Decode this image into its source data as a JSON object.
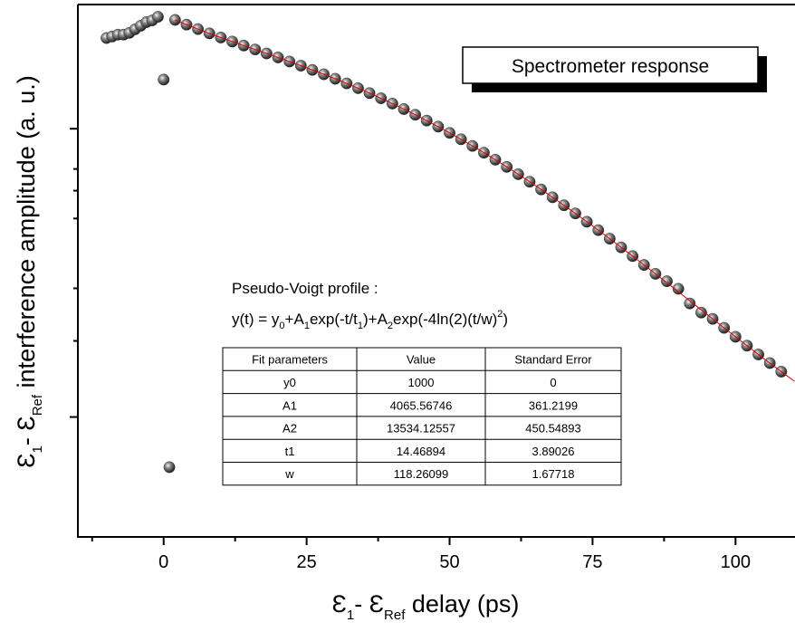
{
  "chart_data": {
    "type": "scatter",
    "x_label": [
      "Ɛ",
      "1",
      "- Ɛ",
      "Ref",
      " delay (ps)"
    ],
    "y_label": [
      "Ɛ",
      "1",
      "- Ɛ",
      "Ref",
      " interference amplitude (a. u.)"
    ],
    "legend": "Spectrometer response",
    "x": [
      -10,
      -9,
      -8,
      -7,
      -6,
      -5,
      -4,
      -3,
      -2,
      -1,
      0,
      1,
      2,
      4,
      6,
      8,
      10,
      12,
      14,
      16,
      18,
      20,
      22,
      24,
      26,
      28,
      30,
      32,
      34,
      36,
      38,
      40,
      42,
      44,
      46,
      48,
      50,
      52,
      54,
      56,
      58,
      60,
      62,
      64,
      66,
      68,
      70,
      72,
      74,
      76,
      78,
      80,
      82,
      84,
      86,
      88,
      90,
      92,
      94,
      96,
      98,
      100,
      102,
      104,
      106,
      108
    ],
    "values": [
      16260,
      16400,
      16580,
      16580,
      16750,
      17100,
      17460,
      17830,
      18010,
      18390,
      12770,
      1345,
      18063,
      17574,
      17123,
      16702,
      16305,
      15927,
      15563,
      15210,
      14864,
      14523,
      14185,
      13848,
      13510,
      13173,
      12833,
      12493,
      12150,
      11806,
      11459,
      11111,
      10762,
      10414,
      10066,
      9718,
      9372,
      9030,
      8688,
      8353,
      8020,
      7693,
      7372,
      7057,
      6748,
      6448,
      6155,
      5871,
      5594,
      5327,
      5070,
      4821,
      4582,
      4353,
      4134,
      3960,
      3790,
      3480,
      3300,
      3182,
      3021,
      2868,
      2724,
      2588,
      2462,
      2342
    ],
    "xlim": [
      -15,
      110.4
    ],
    "xticks": [
      0,
      25,
      50,
      75,
      100
    ],
    "xminorticks": [
      -12.5,
      12.5,
      37.5,
      62.5,
      87.5
    ],
    "ylim": [
      897,
      19750
    ],
    "yscale": "log",
    "yticks": [
      9600,
      7600,
      6700,
      5700,
      3800,
      2800,
      1800
    ],
    "point_color": "#3a3a3a",
    "fit_color": "#e00000",
    "fit_title": "Pseudo-Voigt profile :",
    "fit_formula": [
      "y(t) = y",
      "0",
      "+A",
      "1",
      "exp(-t/t",
      "1",
      ")+A",
      "2",
      "exp(-4ln(2)(t/w)",
      "2",
      ")"
    ],
    "table": {
      "header": [
        "Fit parameters",
        "Value",
        "Standard Error"
      ],
      "rows": [
        [
          "y0",
          "1000",
          "0"
        ],
        [
          "A1",
          "4065.56746",
          "361.2199"
        ],
        [
          "A2",
          "13534.12557",
          "450.54893"
        ],
        [
          "t1",
          "14.46894",
          "3.89026"
        ],
        [
          "w",
          "118.26099",
          "1.67718"
        ]
      ]
    }
  }
}
